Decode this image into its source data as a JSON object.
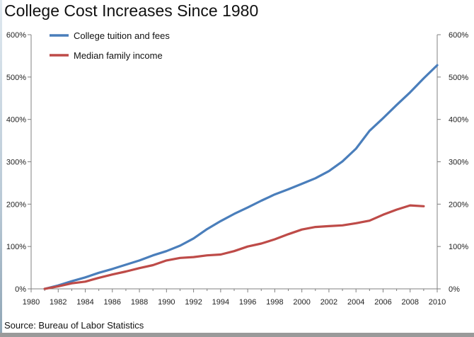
{
  "chart_data": {
    "type": "line",
    "title": "College Cost Increases Since 1980",
    "source": "Source: Bureau of Labor Statistics",
    "xlabel": "",
    "ylabel": "",
    "xlim": [
      1980,
      2010
    ],
    "ylim": [
      0,
      600
    ],
    "x_ticks": [
      "1980",
      "1982",
      "1984",
      "1986",
      "1988",
      "1990",
      "1992",
      "1994",
      "1996",
      "1998",
      "2000",
      "2002",
      "2004",
      "2006",
      "2008",
      "2010"
    ],
    "y_ticks": [
      "0%",
      "100%",
      "200%",
      "300%",
      "400%",
      "500%",
      "600%"
    ],
    "y_tick_values": [
      0,
      100,
      200,
      300,
      400,
      500,
      600
    ],
    "x_tick_values": [
      1980,
      1982,
      1984,
      1986,
      1988,
      1990,
      1992,
      1994,
      1996,
      1998,
      2000,
      2002,
      2004,
      2006,
      2008,
      2010
    ],
    "legend_position": "top-left",
    "series": [
      {
        "name": "College tuition and fees",
        "color": "#4a7ebb",
        "x": [
          1981,
          1982,
          1983,
          1984,
          1985,
          1986,
          1987,
          1988,
          1989,
          1990,
          1991,
          1992,
          1993,
          1994,
          1995,
          1996,
          1997,
          1998,
          1999,
          2000,
          2001,
          2002,
          2003,
          2004,
          2005,
          2006,
          2007,
          2008,
          2009,
          2010
        ],
        "y": [
          0,
          8,
          18,
          27,
          38,
          47,
          57,
          67,
          79,
          89,
          102,
          119,
          141,
          160,
          177,
          192,
          208,
          223,
          235,
          248,
          261,
          278,
          301,
          331,
          373,
          403,
          434,
          464,
          497,
          528
        ]
      },
      {
        "name": "Median family income",
        "color": "#be4b48",
        "x": [
          1981,
          1982,
          1983,
          1984,
          1985,
          1986,
          1987,
          1988,
          1989,
          1990,
          1991,
          1992,
          1993,
          1994,
          1995,
          1996,
          1997,
          1998,
          1999,
          2000,
          2001,
          2002,
          2003,
          2004,
          2005,
          2006,
          2007,
          2008,
          2009
        ],
        "y": [
          0,
          6,
          13,
          17,
          26,
          34,
          41,
          49,
          56,
          67,
          73,
          75,
          79,
          81,
          89,
          100,
          107,
          117,
          129,
          140,
          146,
          148,
          150,
          155,
          161,
          175,
          187,
          197,
          195
        ]
      }
    ]
  }
}
